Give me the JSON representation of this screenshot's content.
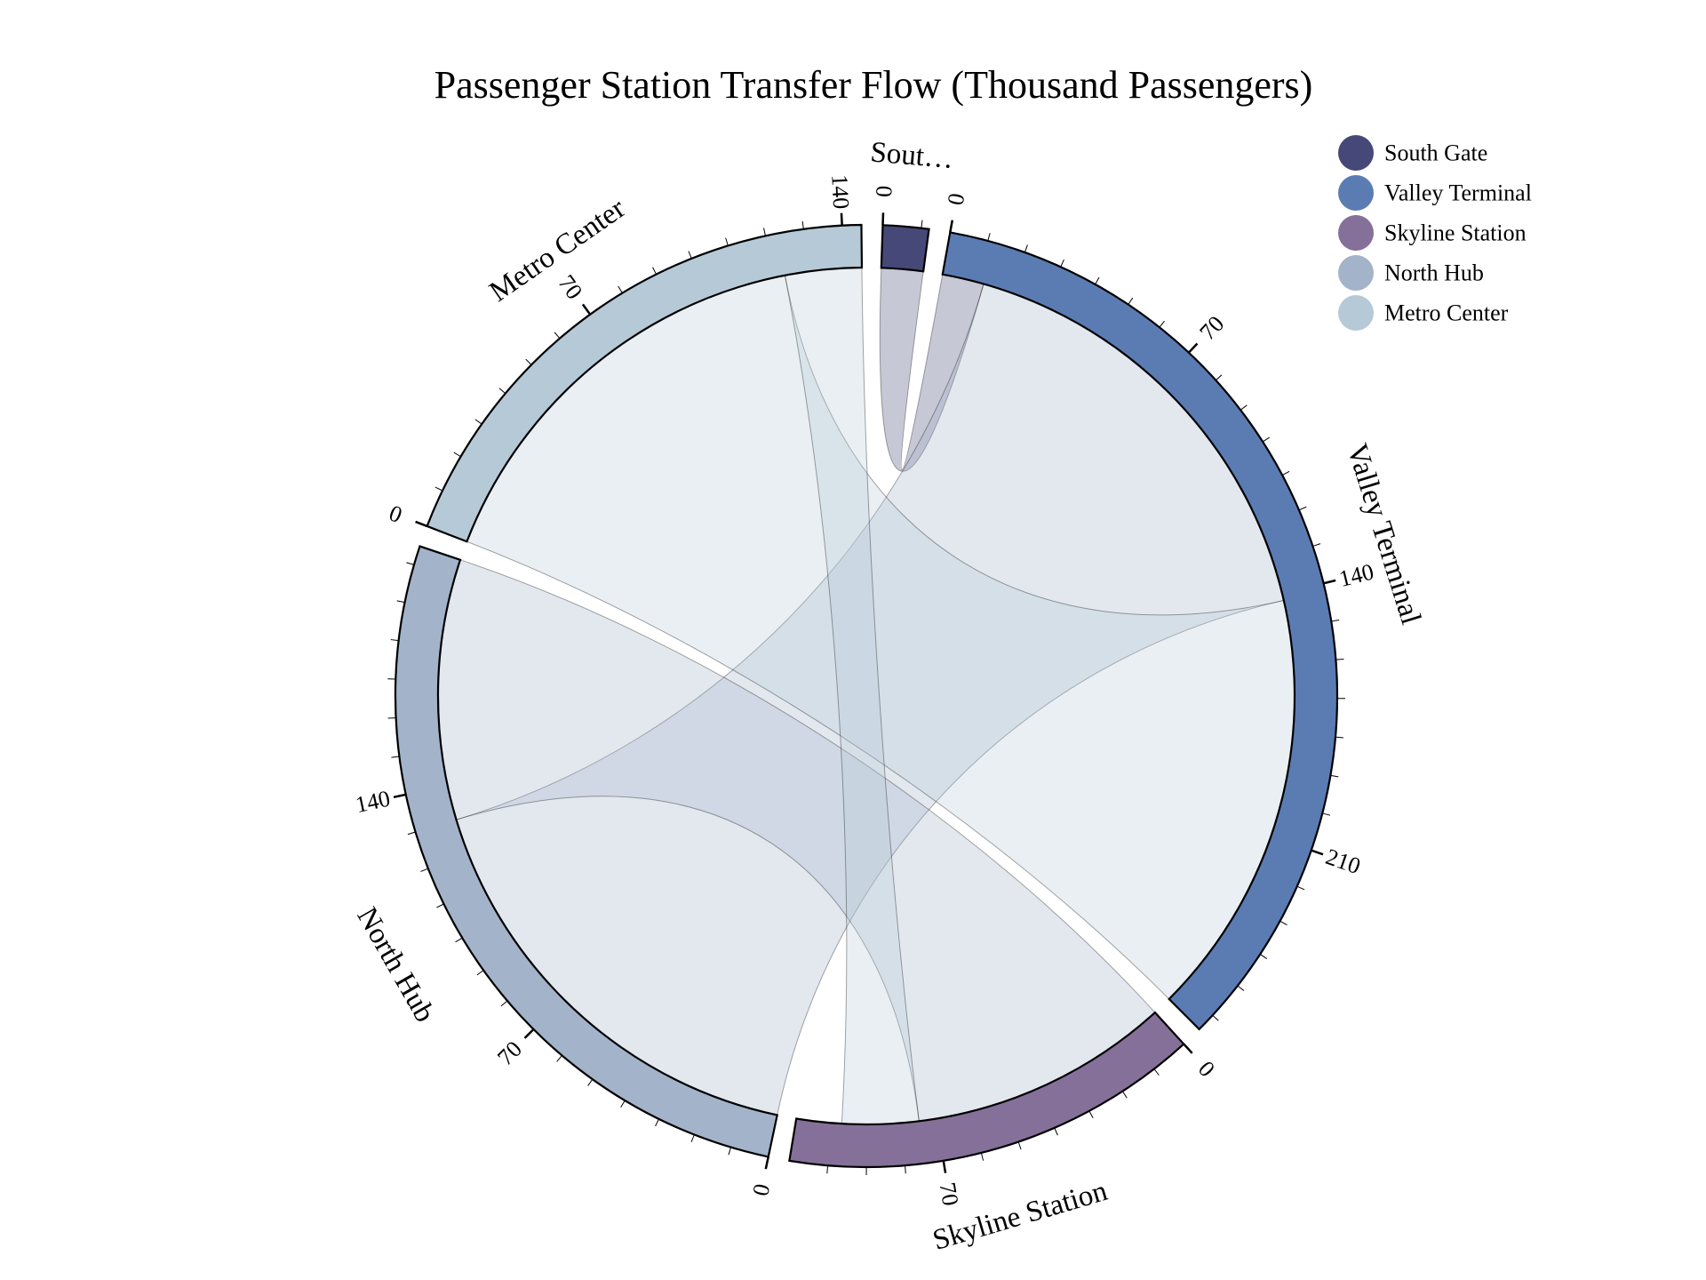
{
  "chart_data": {
    "type": "chord",
    "title": "Passenger Station Transfer Flow (Thousand Passengers)",
    "unit": "Thousand Passengers",
    "groups": [
      {
        "name": "South Gate",
        "display_label": "Sout…",
        "color": "#464878",
        "total": 12
      },
      {
        "name": "Valley Terminal",
        "color": "#5b7cb3",
        "total": 265
      },
      {
        "name": "Skyline Station",
        "color": "#847099",
        "total": 110
      },
      {
        "name": "North Hub",
        "color": "#a3b3c9",
        "total": 205
      },
      {
        "name": "Metro Center",
        "color": "#b6c9d6",
        "total": 145
      }
    ],
    "flows": [
      {
        "source": "South Gate",
        "target": "Valley Terminal",
        "value": 12
      },
      {
        "source": "Valley Terminal",
        "target": "South Gate",
        "value": 0
      },
      {
        "source": "Valley Terminal",
        "target": "Skyline Station",
        "value": 0
      },
      {
        "source": "Valley Terminal",
        "target": "North Hub",
        "value": 0
      },
      {
        "source": "Valley Terminal",
        "target": "Metro Center",
        "value": 0
      },
      {
        "source": "Skyline Station",
        "target": "Valley Terminal",
        "value": 0
      },
      {
        "source": "Skyline Station",
        "target": "Metro Center",
        "value": 0
      },
      {
        "source": "North Hub",
        "target": "Valley Terminal",
        "value": 130
      },
      {
        "source": "North Hub",
        "target": "Skyline Station",
        "value": 75
      },
      {
        "source": "Metro Center",
        "target": "Valley Terminal",
        "value": 123
      },
      {
        "source": "Metro Center",
        "target": "Skyline Station",
        "value": 22
      }
    ],
    "ticks": {
      "South Gate": [
        0
      ],
      "Valley Terminal": [
        0,
        70,
        140,
        210
      ],
      "Skyline Station": [
        0,
        70
      ],
      "North Hub": [
        0,
        70,
        140
      ],
      "Metro Center": [
        0,
        70,
        140
      ]
    },
    "legend": {
      "position": "top-right",
      "items": [
        "South Gate",
        "Valley Terminal",
        "Skyline Station",
        "North Hub",
        "Metro Center"
      ]
    }
  }
}
